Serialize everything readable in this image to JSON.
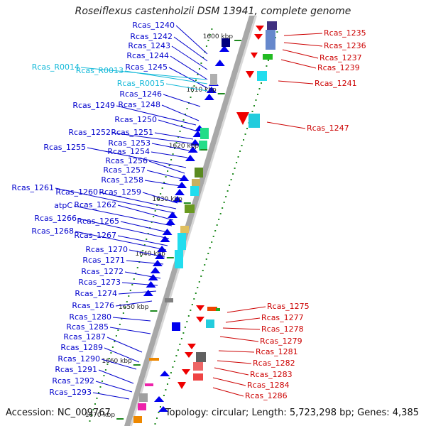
{
  "title": "Roseiflexus castenholzii DSM 13941, complete genome",
  "accession": "Accession: NC_009767",
  "summary": "Topology: circular; Length: 5,723,298 bp; Genes: 4,385",
  "colors": {
    "left_label": "#0000cc",
    "rna_label": "#11b8d8",
    "right_label": "#cc0000",
    "backbone": "#a0a0a0",
    "dot": "#1f8a1f"
  },
  "ticks": [
    "1600 kbp",
    "1610 kbp",
    "1620 kbp",
    "1630 kbp",
    "1640 kbp",
    "1650 kbp",
    "1660 kbp",
    "1670 kbp"
  ],
  "left_genes": [
    "Rcas_1240",
    "Rcas_1242",
    "Rcas_1243",
    "Rcas_1244",
    "Rcas_1245",
    "Rcas_1246",
    "Rcas_1248",
    "Rcas_1249",
    "Rcas_1250",
    "Rcas_1251",
    "Rcas_1252",
    "Rcas_1253",
    "Rcas_1254",
    "Rcas_1255",
    "Rcas_1256",
    "Rcas_1257",
    "Rcas_1258",
    "Rcas_1259",
    "Rcas_1260",
    "Rcas_1261",
    "Rcas_1262",
    "atpC",
    "Rcas_1265",
    "Rcas_1266",
    "Rcas_1267",
    "Rcas_1268",
    "Rcas_1270",
    "Rcas_1271",
    "Rcas_1272",
    "Rcas_1273",
    "Rcas_1274",
    "Rcas_1276",
    "Rcas_1280",
    "Rcas_1285",
    "Rcas_1287",
    "Rcas_1289",
    "Rcas_1290",
    "Rcas_1291",
    "Rcas_1292",
    "Rcas_1293"
  ],
  "rna_genes": [
    "Rcas_R0014",
    "Rcas_R0013",
    "Rcas_R0015"
  ],
  "right_genes": [
    "Rcas_1235",
    "Rcas_1236",
    "Rcas_1237",
    "Rcas_1239",
    "Rcas_1241",
    "Rcas_1247",
    "Rcas_1275",
    "Rcas_1277",
    "Rcas_1278",
    "Rcas_1279",
    "Rcas_1281",
    "Rcas_1282",
    "Rcas_1283",
    "Rcas_1284",
    "Rcas_1286"
  ]
}
